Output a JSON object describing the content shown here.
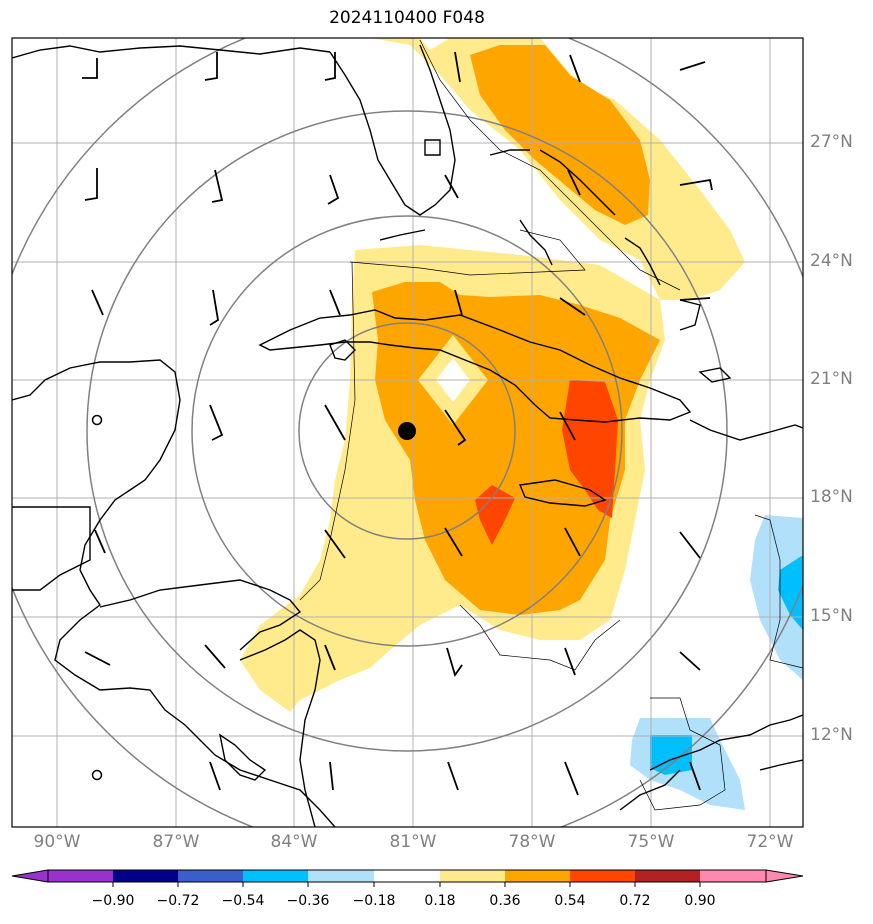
{
  "title": "2024110400 F048",
  "lat_labels": [
    "27°N",
    "24°N",
    "21°N",
    "18°N",
    "15°N",
    "12°N"
  ],
  "lon_labels": [
    "90°W",
    "87°W",
    "84°W",
    "81°W",
    "78°W",
    "75°W",
    "72°W"
  ],
  "colorbar": {
    "ticks": [
      "−0.90",
      "−0.72",
      "−0.54",
      "−0.36",
      "−0.18",
      "0.18",
      "0.36",
      "0.54",
      "0.72",
      "0.90"
    ],
    "colors": [
      "#9932cc",
      "#00008b",
      "#3a5fcd",
      "#00bfff",
      "#b0e0fa",
      "#ffffff",
      "#ffeb8c",
      "#ffa500",
      "#ff4500",
      "#b22222",
      "#ff88b0"
    ]
  },
  "center_marker": {
    "lon": -81.1,
    "lat": 19.7
  },
  "colors": {
    "land_line": "#000000",
    "grid": "#b0b0b0",
    "range_rings": "#808080"
  }
}
